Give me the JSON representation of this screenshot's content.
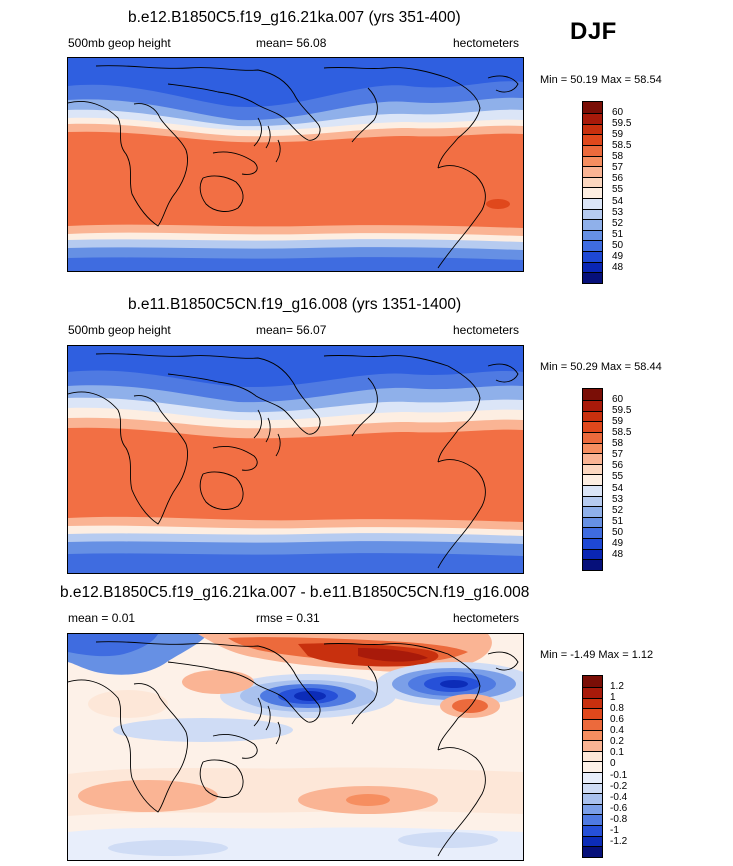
{
  "season": "DJF",
  "colors": {
    "full_levels": [
      "#7a0e06",
      "#a81a0a",
      "#c8300e",
      "#e0481c",
      "#ec6a3c",
      "#f68e60",
      "#fab494",
      "#fcd7c0",
      "#fdeee2",
      "#dbe5f7",
      "#b6cbf0",
      "#8fb0ea",
      "#6690e4",
      "#3f6ce0",
      "#1e48d4",
      "#0a26b4",
      "#06107a"
    ],
    "diff_levels": [
      "#7a0e06",
      "#a81a0a",
      "#c8300e",
      "#e0481c",
      "#ec6a3c",
      "#f68e60",
      "#fab494",
      "#fde7d8",
      "#fdf1e8",
      "#e8eefb",
      "#cfdcf5",
      "#a9c1ee",
      "#7b9fe8",
      "#4f7ae2",
      "#2650d8",
      "#0c2cb8",
      "#06107a"
    ]
  },
  "panels": [
    {
      "title": "b.e12.B1850C5.f19_g16.21ka.007 (yrs 351-400)",
      "left_label": "500mb geop height",
      "center_label": "mean=  56.08",
      "right_label": "hectometers",
      "minmax": "Min =  50.19 Max =  58.54"
    },
    {
      "title": "b.e11.B1850C5CN.f19_g16.008 (yrs 1351-1400)",
      "left_label": "500mb geop height",
      "center_label": "mean=  56.07",
      "right_label": "hectometers",
      "minmax": "Min =  50.29 Max =  58.44"
    },
    {
      "title": "b.e12.B1850C5.f19_g16.21ka.007 - b.e11.B1850C5CN.f19_g16.008",
      "left_label": "mean =   0.01",
      "center_label": "rmse =   0.31",
      "right_label": "hectometers",
      "minmax": "Min =  -1.49 Max =   1.12"
    }
  ],
  "colorbars": {
    "full": [
      "60",
      "59.5",
      "59",
      "58.5",
      "58",
      "57",
      "56",
      "55",
      "54",
      "53",
      "52",
      "51",
      "50",
      "49",
      "48"
    ],
    "diff": [
      "1.2",
      "1",
      "0.8",
      "0.6",
      "0.4",
      "0.2",
      "0.1",
      "0",
      "-0.1",
      "-0.2",
      "-0.4",
      "-0.6",
      "-0.8",
      "-1",
      "-1.2"
    ]
  }
}
